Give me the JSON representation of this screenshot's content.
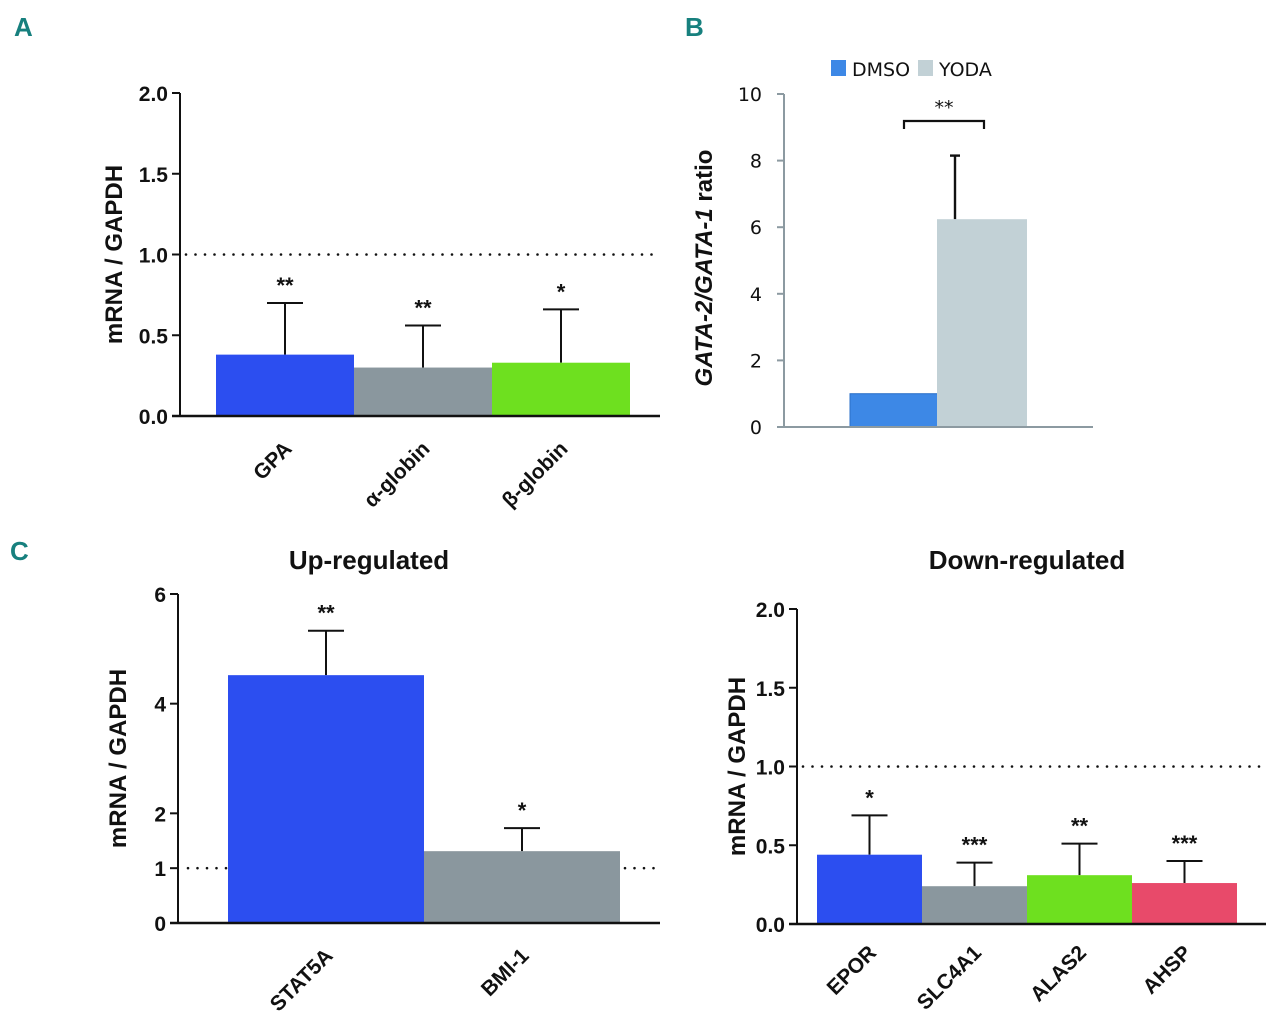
{
  "panels": {
    "A": "A",
    "B": "B",
    "C": "C"
  },
  "chart_data": [
    {
      "id": "A",
      "type": "bar",
      "title": "",
      "xlabel": "",
      "ylabel": "mRNA / GAPDH",
      "ylim": [
        0,
        2.0
      ],
      "yticks": [
        "0.0",
        "0.5",
        "1.0",
        "1.5",
        "2.0"
      ],
      "ytick_values": [
        0,
        0.5,
        1.0,
        1.5,
        2.0
      ],
      "reference_line": 1.0,
      "categories": [
        "GPA",
        "α-globin",
        "β-globin"
      ],
      "values": [
        0.38,
        0.3,
        0.33
      ],
      "error_upper": [
        0.7,
        0.56,
        0.66
      ],
      "significance": [
        "**",
        "**",
        "*"
      ],
      "colors": [
        "#2c4ef0",
        "#8a979e",
        "#6ee01f"
      ]
    },
    {
      "id": "B",
      "type": "bar",
      "title": "",
      "xlabel": "",
      "ylabel_parts": [
        "GATA-2/GATA-1",
        " ratio"
      ],
      "ylim": [
        0,
        10
      ],
      "yticks": [
        "0",
        "2",
        "4",
        "6",
        "8",
        "10"
      ],
      "ytick_values": [
        0,
        2,
        4,
        6,
        8,
        10
      ],
      "legend": [
        "DMSO",
        "YODA"
      ],
      "legend_position": "top",
      "series": [
        {
          "name": "DMSO",
          "values": [
            1.0
          ],
          "error_upper": [
            null
          ],
          "color": "#3d88e6"
        },
        {
          "name": "YODA",
          "values": [
            6.24
          ],
          "error_upper": [
            8.15
          ],
          "color": "#c2d1d6"
        }
      ],
      "bracket_label": "**"
    },
    {
      "id": "C-up",
      "type": "bar",
      "title": "Up-regulated",
      "xlabel": "",
      "ylabel": "mRNA / GAPDH",
      "ylim": [
        0,
        6
      ],
      "yticks": [
        "0",
        "1",
        "2",
        "4",
        "6"
      ],
      "ytick_values": [
        0,
        1,
        2,
        4,
        6
      ],
      "reference_line": 1.0,
      "categories": [
        "STAT5A",
        "BMI-1"
      ],
      "values": [
        4.52,
        1.31
      ],
      "error_upper": [
        5.33,
        1.73
      ],
      "significance": [
        "**",
        "*"
      ],
      "colors": [
        "#2c4ef0",
        "#8a979e"
      ]
    },
    {
      "id": "C-down",
      "type": "bar",
      "title": "Down-regulated",
      "xlabel": "",
      "ylabel": "mRNA / GAPDH",
      "ylim": [
        0,
        2.0
      ],
      "yticks": [
        "0.0",
        "0.5",
        "1.0",
        "1.5",
        "2.0"
      ],
      "ytick_values": [
        0,
        0.5,
        1.0,
        1.5,
        2.0
      ],
      "reference_line": 1.0,
      "categories": [
        "EPOR",
        "SLC4A1",
        "ALAS2",
        "AHSP"
      ],
      "values": [
        0.44,
        0.24,
        0.31,
        0.26
      ],
      "error_upper": [
        0.69,
        0.39,
        0.51,
        0.4
      ],
      "significance": [
        "*",
        "***",
        "**",
        "***"
      ],
      "colors": [
        "#2c4ef0",
        "#8a979e",
        "#6ee01f",
        "#e84a6a"
      ]
    }
  ]
}
